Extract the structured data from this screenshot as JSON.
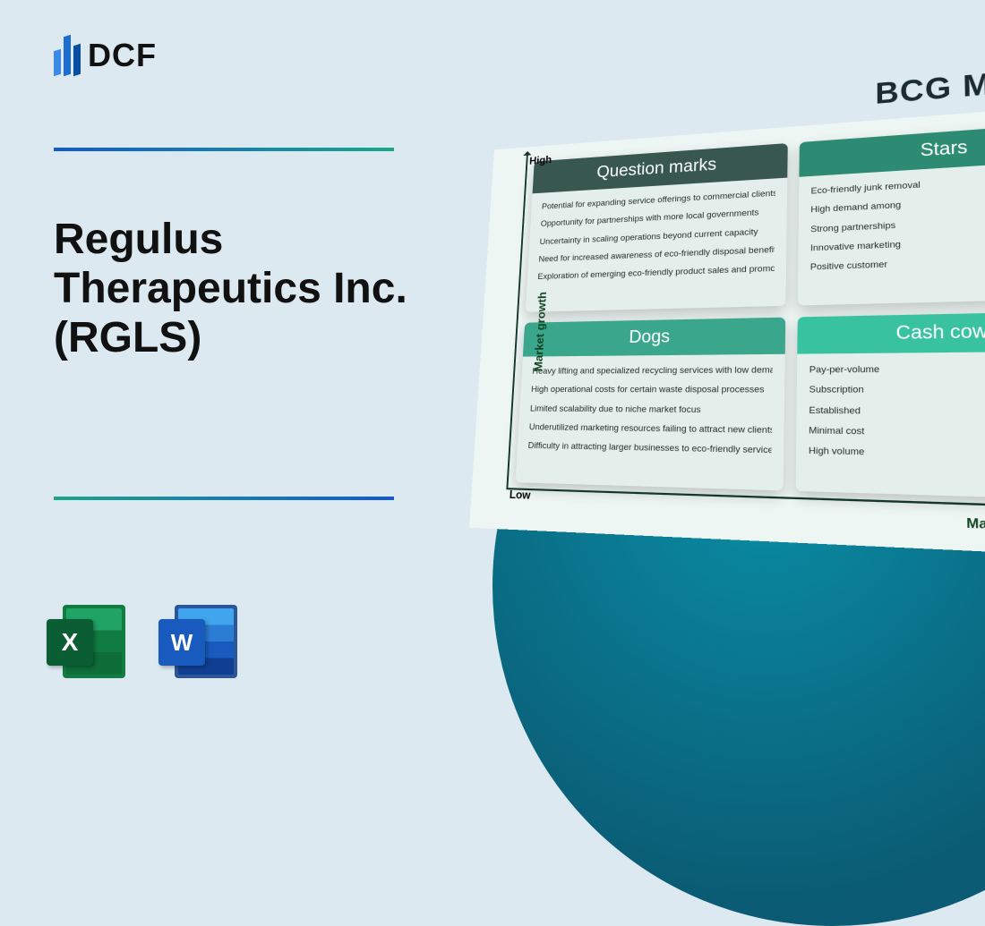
{
  "brand": {
    "name": "DCF"
  },
  "title": "Regulus Therapeutics Inc. (RGLS)",
  "icons": {
    "excel_letter": "X",
    "word_letter": "W"
  },
  "matrix": {
    "heading": "BCG MATRIX",
    "y_axis": "Market growth",
    "x_axis": "Market share",
    "y_high": "High",
    "y_low": "Low",
    "quadrants": {
      "question": {
        "title": "Question marks",
        "items": [
          "Potential for expanding service offerings to commercial clients",
          "Opportunity for partnerships with more local governments",
          "Uncertainty in scaling operations beyond current capacity",
          "Need for increased awareness of eco-friendly disposal benefits",
          "Exploration of emerging eco-friendly product sales and promotions"
        ]
      },
      "stars": {
        "title": "Stars",
        "items": [
          "Eco-friendly junk removal",
          "High demand among",
          "Strong partnerships",
          "Innovative marketing",
          "Positive customer"
        ]
      },
      "dogs": {
        "title": "Dogs",
        "items": [
          "Heavy lifting and specialized recycling services with low demand",
          "High operational costs for certain waste disposal processes",
          "Limited scalability due to niche market focus",
          "Underutilized marketing resources failing to attract new clients",
          "Difficulty in attracting larger businesses to eco-friendly services"
        ]
      },
      "cows": {
        "title": "Cash cows",
        "items": [
          "Pay-per-volume",
          "Subscription",
          "Established",
          "Minimal cost",
          "High volume"
        ]
      }
    }
  },
  "colors": {
    "bg": "#dce9f1",
    "circle_from": "#0a8da6",
    "circle_to": "#0a5b73"
  }
}
